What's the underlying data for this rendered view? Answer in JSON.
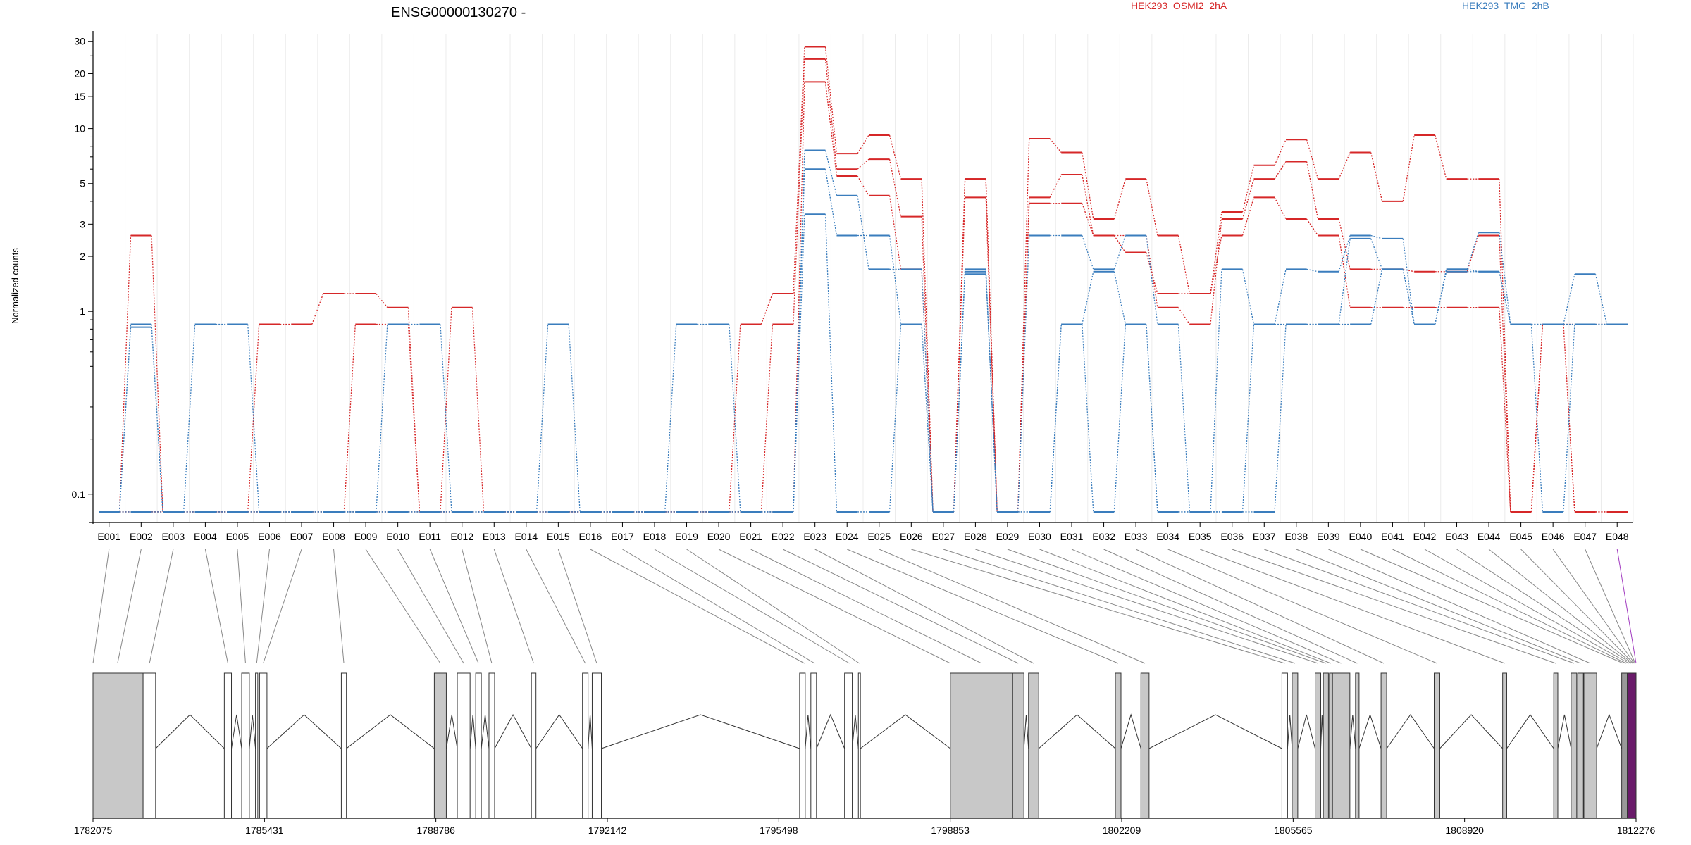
{
  "chart_data": {
    "type": "line",
    "title": "ENSG00000130270 -",
    "xlabel": "",
    "ylabel": "Normalized counts",
    "y_scale": "log",
    "y_ticks": [
      0.1,
      1,
      2,
      3,
      5,
      10,
      15,
      20,
      30
    ],
    "y_tick_labels": [
      "0.1",
      "1",
      "2",
      "3",
      "5",
      "10",
      "15",
      "20",
      "30"
    ],
    "ylim": [
      0.07,
      33
    ],
    "grid": "vertical",
    "legend": {
      "placement": "top",
      "entries": [
        {
          "label": "HEK293_OSMI2_2hA",
          "color": "#d62728"
        },
        {
          "label": "HEK293_TMG_2hB",
          "color": "#3a7dbd"
        }
      ]
    },
    "categories": [
      "E001",
      "E002",
      "E003",
      "E004",
      "E005",
      "E006",
      "E007",
      "E008",
      "E009",
      "E010",
      "E011",
      "E012",
      "E013",
      "E014",
      "E015",
      "E016",
      "E017",
      "E018",
      "E019",
      "E020",
      "E021",
      "E022",
      "E023",
      "E024",
      "E025",
      "E026",
      "E027",
      "E028",
      "E029",
      "E030",
      "E031",
      "E032",
      "E033",
      "E034",
      "E035",
      "E036",
      "E037",
      "E038",
      "E039",
      "E040",
      "E041",
      "E042",
      "E043",
      "E044",
      "E045",
      "E046",
      "E047",
      "E048"
    ],
    "series": [
      {
        "group": "HEK293_OSMI2_2hA",
        "color": "#d62728",
        "values": [
          0.08,
          2.6,
          0.08,
          0.08,
          0.08,
          0.85,
          0.85,
          1.25,
          1.25,
          1.05,
          0.08,
          1.05,
          0.08,
          0.08,
          0.08,
          0.08,
          0.08,
          0.08,
          0.08,
          0.08,
          0.85,
          1.25,
          28,
          7.3,
          9.2,
          5.3,
          0.08,
          5.3,
          0.08,
          8.8,
          7.4,
          3.2,
          5.3,
          2.6,
          1.25,
          3.5,
          6.3,
          8.7,
          5.3,
          7.4,
          4.0,
          9.2,
          5.3,
          5.3,
          0.08,
          0.85,
          0.85,
          0.85
        ]
      },
      {
        "group": "HEK293_OSMI2_2hA",
        "color": "#d62728",
        "values": [
          0.08,
          0.08,
          0.08,
          0.08,
          0.08,
          0.08,
          0.08,
          0.08,
          0.85,
          0.85,
          0.08,
          0.08,
          0.08,
          0.08,
          0.08,
          0.08,
          0.08,
          0.08,
          0.08,
          0.08,
          0.08,
          0.85,
          24,
          6.0,
          6.8,
          3.3,
          0.08,
          4.2,
          0.08,
          4.2,
          5.6,
          2.6,
          2.6,
          1.05,
          0.85,
          3.2,
          5.3,
          6.6,
          3.2,
          1.7,
          1.7,
          1.65,
          1.65,
          2.6,
          0.08,
          0.85,
          0.08,
          0.08
        ]
      },
      {
        "group": "HEK293_OSMI2_2hA",
        "color": "#d62728",
        "values": [
          0.08,
          0.08,
          0.08,
          0.08,
          0.08,
          0.08,
          0.08,
          0.08,
          0.08,
          0.08,
          0.08,
          0.08,
          0.08,
          0.08,
          0.08,
          0.08,
          0.08,
          0.08,
          0.08,
          0.08,
          0.08,
          0.08,
          18,
          5.5,
          4.3,
          1.7,
          0.08,
          5.3,
          0.08,
          3.9,
          3.9,
          2.6,
          2.1,
          1.25,
          1.25,
          2.6,
          4.2,
          3.2,
          2.6,
          1.05,
          1.05,
          1.05,
          1.05,
          1.05,
          0.08,
          0.85,
          0.08,
          0.08
        ]
      },
      {
        "group": "HEK293_TMG_2hB",
        "color": "#3a7dbd",
        "values": [
          0.08,
          0.85,
          0.08,
          0.85,
          0.85,
          0.08,
          0.08,
          0.08,
          0.08,
          0.85,
          0.85,
          0.08,
          0.08,
          0.08,
          0.85,
          0.08,
          0.08,
          0.08,
          0.85,
          0.85,
          0.08,
          0.08,
          7.6,
          4.3,
          1.7,
          1.7,
          0.08,
          1.7,
          0.08,
          2.6,
          2.6,
          1.7,
          2.6,
          0.85,
          0.08,
          1.7,
          0.85,
          1.7,
          1.65,
          2.6,
          2.5,
          0.85,
          1.7,
          2.7,
          0.85,
          0.85,
          1.6,
          0.85
        ]
      },
      {
        "group": "HEK293_TMG_2hB",
        "color": "#3a7dbd",
        "values": [
          0.08,
          0.82,
          0.08,
          0.08,
          0.08,
          0.08,
          0.08,
          0.08,
          0.08,
          0.08,
          0.08,
          0.08,
          0.08,
          0.08,
          0.08,
          0.08,
          0.08,
          0.08,
          0.08,
          0.08,
          0.08,
          0.08,
          6.0,
          2.6,
          2.6,
          0.85,
          0.08,
          1.65,
          0.08,
          0.08,
          0.85,
          1.65,
          0.85,
          0.08,
          0.08,
          0.08,
          0.85,
          0.85,
          0.85,
          2.5,
          1.7,
          0.85,
          1.7,
          1.65,
          0.85,
          0.85,
          0.85,
          0.85
        ]
      },
      {
        "group": "HEK293_TMG_2hB",
        "color": "#3a7dbd",
        "values": [
          0.08,
          0.08,
          0.08,
          0.08,
          0.08,
          0.08,
          0.08,
          0.08,
          0.08,
          0.08,
          0.08,
          0.08,
          0.08,
          0.08,
          0.08,
          0.08,
          0.08,
          0.08,
          0.08,
          0.08,
          0.08,
          0.08,
          3.4,
          0.08,
          0.08,
          0.85,
          0.08,
          1.6,
          0.08,
          0.08,
          0.85,
          0.08,
          0.85,
          0.08,
          0.08,
          0.08,
          0.08,
          0.85,
          0.85,
          0.85,
          1.7,
          0.85,
          1.65,
          1.65,
          0.85,
          0.08,
          0.85,
          0.85
        ]
      }
    ],
    "gene_model": {
      "coordinate_labels": [
        "1782075",
        "1785431",
        "1788786",
        "1792142",
        "1795498",
        "1798853",
        "1802209",
        "1805565",
        "1808920",
        "1812276"
      ],
      "exons": [
        {
          "start": 1782075,
          "end": 1783055,
          "fill": "#c8c8c8"
        },
        {
          "start": 1783055,
          "end": 1783300,
          "fill": "#ffffff"
        },
        {
          "start": 1784645,
          "end": 1784785,
          "fill": "#ffffff"
        },
        {
          "start": 1784985,
          "end": 1785135,
          "fill": "#ffffff"
        },
        {
          "start": 1785255,
          "end": 1785300,
          "fill": "#ffffff"
        },
        {
          "start": 1785335,
          "end": 1785480,
          "fill": "#ffffff"
        },
        {
          "start": 1786935,
          "end": 1787035,
          "fill": "#ffffff"
        },
        {
          "start": 1788755,
          "end": 1788990,
          "fill": "#c8c8c8"
        },
        {
          "start": 1789205,
          "end": 1789455,
          "fill": "#ffffff"
        },
        {
          "start": 1789565,
          "end": 1789675,
          "fill": "#ffffff"
        },
        {
          "start": 1789825,
          "end": 1789935,
          "fill": "#ffffff"
        },
        {
          "start": 1790655,
          "end": 1790745,
          "fill": "#ffffff"
        },
        {
          "start": 1791655,
          "end": 1791765,
          "fill": "#ffffff"
        },
        {
          "start": 1791845,
          "end": 1792025,
          "fill": "#ffffff"
        },
        {
          "start": 1795905,
          "end": 1796015,
          "fill": "#ffffff"
        },
        {
          "start": 1796125,
          "end": 1796235,
          "fill": "#ffffff"
        },
        {
          "start": 1796785,
          "end": 1796935,
          "fill": "#ffffff"
        },
        {
          "start": 1797055,
          "end": 1797095,
          "fill": "#ffffff"
        },
        {
          "start": 1798855,
          "end": 1800075,
          "fill": "#c8c8c8"
        },
        {
          "start": 1800075,
          "end": 1800295,
          "fill": "#c8c8c8"
        },
        {
          "start": 1800385,
          "end": 1800585,
          "fill": "#c8c8c8"
        },
        {
          "start": 1802085,
          "end": 1802195,
          "fill": "#c8c8c8"
        },
        {
          "start": 1802585,
          "end": 1802745,
          "fill": "#c8c8c8"
        },
        {
          "start": 1805345,
          "end": 1805455,
          "fill": "#ffffff"
        },
        {
          "start": 1805545,
          "end": 1805655,
          "fill": "#c8c8c8"
        },
        {
          "start": 1805995,
          "end": 1806105,
          "fill": "#c8c8c8"
        },
        {
          "start": 1806155,
          "end": 1806255,
          "fill": "#c8c8c8"
        },
        {
          "start": 1806275,
          "end": 1806325,
          "fill": "#c8c8c8"
        },
        {
          "start": 1806335,
          "end": 1806675,
          "fill": "#c8c8c8"
        },
        {
          "start": 1806785,
          "end": 1806855,
          "fill": "#c8c8c8"
        },
        {
          "start": 1807285,
          "end": 1807395,
          "fill": "#c8c8c8"
        },
        {
          "start": 1808325,
          "end": 1808435,
          "fill": "#c8c8c8"
        },
        {
          "start": 1809665,
          "end": 1809745,
          "fill": "#c8c8c8"
        },
        {
          "start": 1810665,
          "end": 1810745,
          "fill": "#c8c8c8"
        },
        {
          "start": 1811005,
          "end": 1811115,
          "fill": "#c8c8c8"
        },
        {
          "start": 1811135,
          "end": 1811245,
          "fill": "#c8c8c8"
        },
        {
          "start": 1811255,
          "end": 1811505,
          "fill": "#c8c8c8"
        },
        {
          "start": 1811995,
          "end": 1812105,
          "fill": "#9a9a9a"
        },
        {
          "start": 1812105,
          "end": 1812276,
          "fill": "#6a1b6a"
        }
      ],
      "exon_anchor_coords": [
        1782075,
        1782555,
        1783180,
        1784715,
        1785060,
        1785278,
        1785407,
        1786985,
        1788872,
        1789330,
        1789620,
        1789880,
        1790700,
        1791710,
        1791935,
        1796000,
        1796200,
        1796880,
        1797075,
        1798855,
        1799465,
        1800185,
        1800485,
        1802140,
        1802665,
        1805400,
        1805600,
        1806050,
        1806205,
        1806300,
        1806505,
        1806820,
        1807340,
        1808380,
        1809705,
        1810705,
        1811060,
        1811190,
        1811380,
        1812025,
        1812080,
        1812135,
        1812180,
        1812205,
        1812225,
        1812245,
        1812260,
        1812276
      ]
    }
  }
}
